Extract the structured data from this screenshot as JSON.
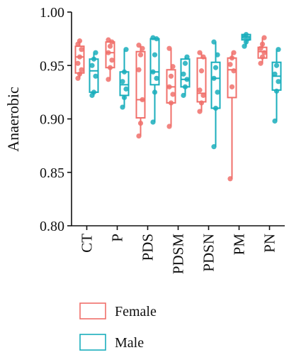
{
  "chart_data": {
    "type": "box",
    "ylabel": "Anaerobic",
    "ylim": [
      0.8,
      1.0
    ],
    "yticks": [
      "0.80",
      "0.85",
      "0.90",
      "0.95",
      "1.00"
    ],
    "categories": [
      "CT",
      "P",
      "PDS",
      "PDSM",
      "PDSN",
      "PM",
      "PN"
    ],
    "legend_position": "bottom",
    "series": [
      {
        "name": "Female",
        "color": "#f0706b",
        "boxes": [
          {
            "min": 0.938,
            "q1": 0.943,
            "median": 0.958,
            "q3": 0.968,
            "max": 0.973,
            "points": [
              0.938,
              0.942,
              0.946,
              0.952,
              0.958,
              0.965,
              0.97,
              0.973
            ]
          },
          {
            "min": 0.937,
            "q1": 0.948,
            "median": 0.962,
            "q3": 0.972,
            "max": 0.974,
            "points": [
              0.937,
              0.948,
              0.955,
              0.962,
              0.968,
              0.972,
              0.974
            ]
          },
          {
            "min": 0.884,
            "q1": 0.901,
            "median": 0.918,
            "q3": 0.963,
            "max": 0.969,
            "points": [
              0.884,
              0.896,
              0.918,
              0.946,
              0.96,
              0.966,
              0.969
            ]
          },
          {
            "min": 0.893,
            "q1": 0.915,
            "median": 0.93,
            "q3": 0.946,
            "max": 0.966,
            "points": [
              0.893,
              0.915,
              0.923,
              0.93,
              0.94,
              0.949,
              0.966
            ]
          },
          {
            "min": 0.907,
            "q1": 0.916,
            "median": 0.924,
            "q3": 0.957,
            "max": 0.962,
            "points": [
              0.907,
              0.915,
              0.922,
              0.927,
              0.945,
              0.958,
              0.962
            ]
          },
          {
            "min": 0.844,
            "q1": 0.92,
            "median": 0.946,
            "q3": 0.957,
            "max": 0.962,
            "points": [
              0.844,
              0.93,
              0.945,
              0.951,
              0.957,
              0.962
            ]
          },
          {
            "min": 0.952,
            "q1": 0.957,
            "median": 0.963,
            "q3": 0.967,
            "max": 0.976,
            "points": [
              0.952,
              0.958,
              0.962,
              0.966,
              0.97,
              0.976
            ]
          }
        ]
      },
      {
        "name": "Male",
        "color": "#1aaebc",
        "boxes": [
          {
            "min": 0.922,
            "q1": 0.925,
            "median": 0.945,
            "q3": 0.956,
            "max": 0.962,
            "points": [
              0.922,
              0.925,
              0.94,
              0.95,
              0.956,
              0.962
            ]
          },
          {
            "min": 0.911,
            "q1": 0.922,
            "median": 0.932,
            "q3": 0.944,
            "max": 0.965,
            "points": [
              0.911,
              0.92,
              0.928,
              0.935,
              0.944,
              0.965
            ]
          },
          {
            "min": 0.897,
            "q1": 0.932,
            "median": 0.944,
            "q3": 0.975,
            "max": 0.976,
            "points": [
              0.897,
              0.925,
              0.938,
              0.944,
              0.96,
              0.975,
              0.976
            ]
          },
          {
            "min": 0.922,
            "q1": 0.93,
            "median": 0.937,
            "q3": 0.956,
            "max": 0.958,
            "points": [
              0.922,
              0.93,
              0.937,
              0.942,
              0.952,
              0.958
            ]
          },
          {
            "min": 0.874,
            "q1": 0.91,
            "median": 0.938,
            "q3": 0.953,
            "max": 0.972,
            "points": [
              0.874,
              0.91,
              0.925,
              0.938,
              0.948,
              0.96,
              0.972
            ]
          },
          {
            "min": 0.968,
            "q1": 0.974,
            "median": 0.977,
            "q3": 0.979,
            "max": 0.979,
            "points": [
              0.968,
              0.972,
              0.975,
              0.977,
              0.979
            ]
          },
          {
            "min": 0.898,
            "q1": 0.927,
            "median": 0.94,
            "q3": 0.953,
            "max": 0.965,
            "points": [
              0.898,
              0.926,
              0.935,
              0.942,
              0.95,
              0.965
            ]
          }
        ]
      }
    ]
  }
}
